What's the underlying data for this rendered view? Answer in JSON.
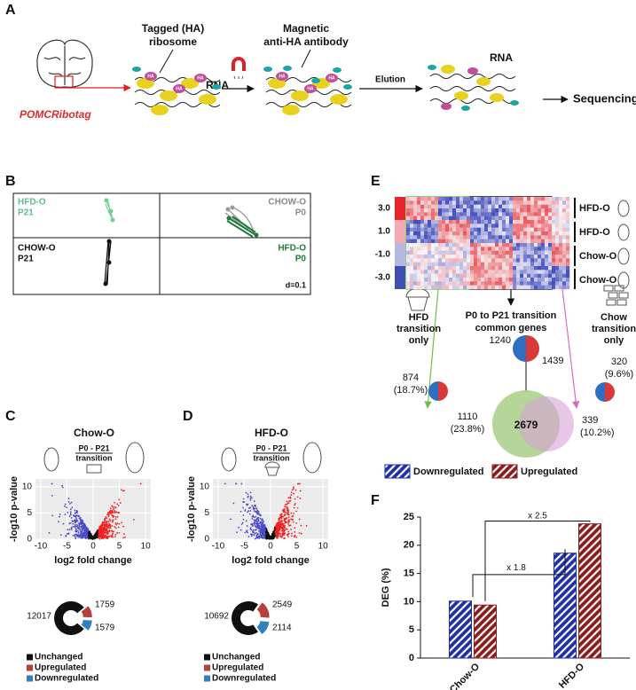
{
  "panel_a": {
    "label": "A",
    "ribosome_label": [
      "Tagged (HA)",
      "ribosome"
    ],
    "antibody_label": [
      "Magnetic",
      "anti-HA antibody"
    ],
    "rna_labels": [
      "RNA",
      "RNA"
    ],
    "ha_tag": "HA",
    "elution": "Elution",
    "sequencing": "Sequencing",
    "mouse_line": "POMCRibotag"
  },
  "panel_b": {
    "label": "B",
    "groups": [
      {
        "name": "HFD-O",
        "age": "P21"
      },
      {
        "name": "CHOW-O",
        "age": "P0"
      },
      {
        "name": "CHOW-O",
        "age": "P21"
      },
      {
        "name": "HFD-O",
        "age": "P0"
      }
    ],
    "scale": "d=0.1"
  },
  "panel_c": {
    "label": "C",
    "title": "Chow-O",
    "transition": [
      "P0 - P21",
      "transition"
    ],
    "ylabel": "-log10 p-value",
    "xlabel": "log2 fold change",
    "xlim": [
      -11,
      11
    ],
    "ylim": [
      0,
      11.5
    ],
    "xticks": [
      -10,
      -5,
      0,
      5,
      10
    ],
    "yticks": [
      0,
      5,
      10
    ],
    "donut": {
      "type": "pie",
      "categories": [
        "Unchanged",
        "Upregulated",
        "Downregulated"
      ],
      "values": [
        12017,
        1759,
        1579
      ],
      "colors": [
        "#111111",
        "#b5403c",
        "#2f7fc1"
      ]
    }
  },
  "panel_d": {
    "label": "D",
    "title": "HFD-O",
    "transition": [
      "P0 - P21",
      "transition"
    ],
    "ylabel": "-log10 p-value",
    "xlabel": "log2 fold change",
    "xlim": [
      -11,
      11
    ],
    "ylim": [
      0,
      11.5
    ],
    "xticks": [
      -10,
      -5,
      0,
      5,
      10
    ],
    "yticks": [
      0,
      5,
      10
    ],
    "donut": {
      "type": "pie",
      "categories": [
        "Unchanged",
        "Upregulated",
        "Downregulated"
      ],
      "values": [
        10692,
        2549,
        2114
      ],
      "colors": [
        "#111111",
        "#b5403c",
        "#2f7fc1"
      ]
    }
  },
  "panel_e": {
    "label": "E",
    "color_scale": [
      {
        "value": 3,
        "label": "3.0"
      },
      {
        "value": 1,
        "label": "1.0"
      },
      {
        "value": -1,
        "label": "-1.0"
      },
      {
        "value": -3,
        "label": "-3.0"
      }
    ],
    "rows": [
      "HFD-O",
      "HFD-O",
      "Chow-O",
      "Chow-O"
    ],
    "common_title": [
      "P0 to P21 transition",
      "common genes"
    ],
    "hfd_only": [
      "HFD",
      "transition",
      "only"
    ],
    "chow_only": [
      "Chow",
      "transition",
      "only"
    ],
    "common_down": "1240",
    "common_up": "1439",
    "hfd_total": [
      "874",
      "(18.7%)"
    ],
    "chow_total": [
      "320",
      "(9.6%)"
    ],
    "venn_hfd": [
      "1110",
      "(23.8%)"
    ],
    "venn_common": "2679",
    "venn_chow": [
      "339",
      "(10.2%)"
    ]
  },
  "chart_data": {
    "type": "bar",
    "label": "F",
    "ylabel": "DEG (%)",
    "categories": [
      "Chow-O",
      "HFD-O"
    ],
    "series": [
      {
        "name": "Downregulated",
        "color": "#1f2fa8",
        "values": [
          10.1,
          18.6
        ]
      },
      {
        "name": "Upregulated",
        "color": "#8b1c1c",
        "values": [
          9.4,
          23.8
        ]
      }
    ],
    "ylim": [
      0,
      25
    ],
    "yticks": [
      0,
      5,
      10,
      15,
      20,
      25
    ],
    "annotations": [
      "x 1.8",
      "x 2.5"
    ]
  }
}
